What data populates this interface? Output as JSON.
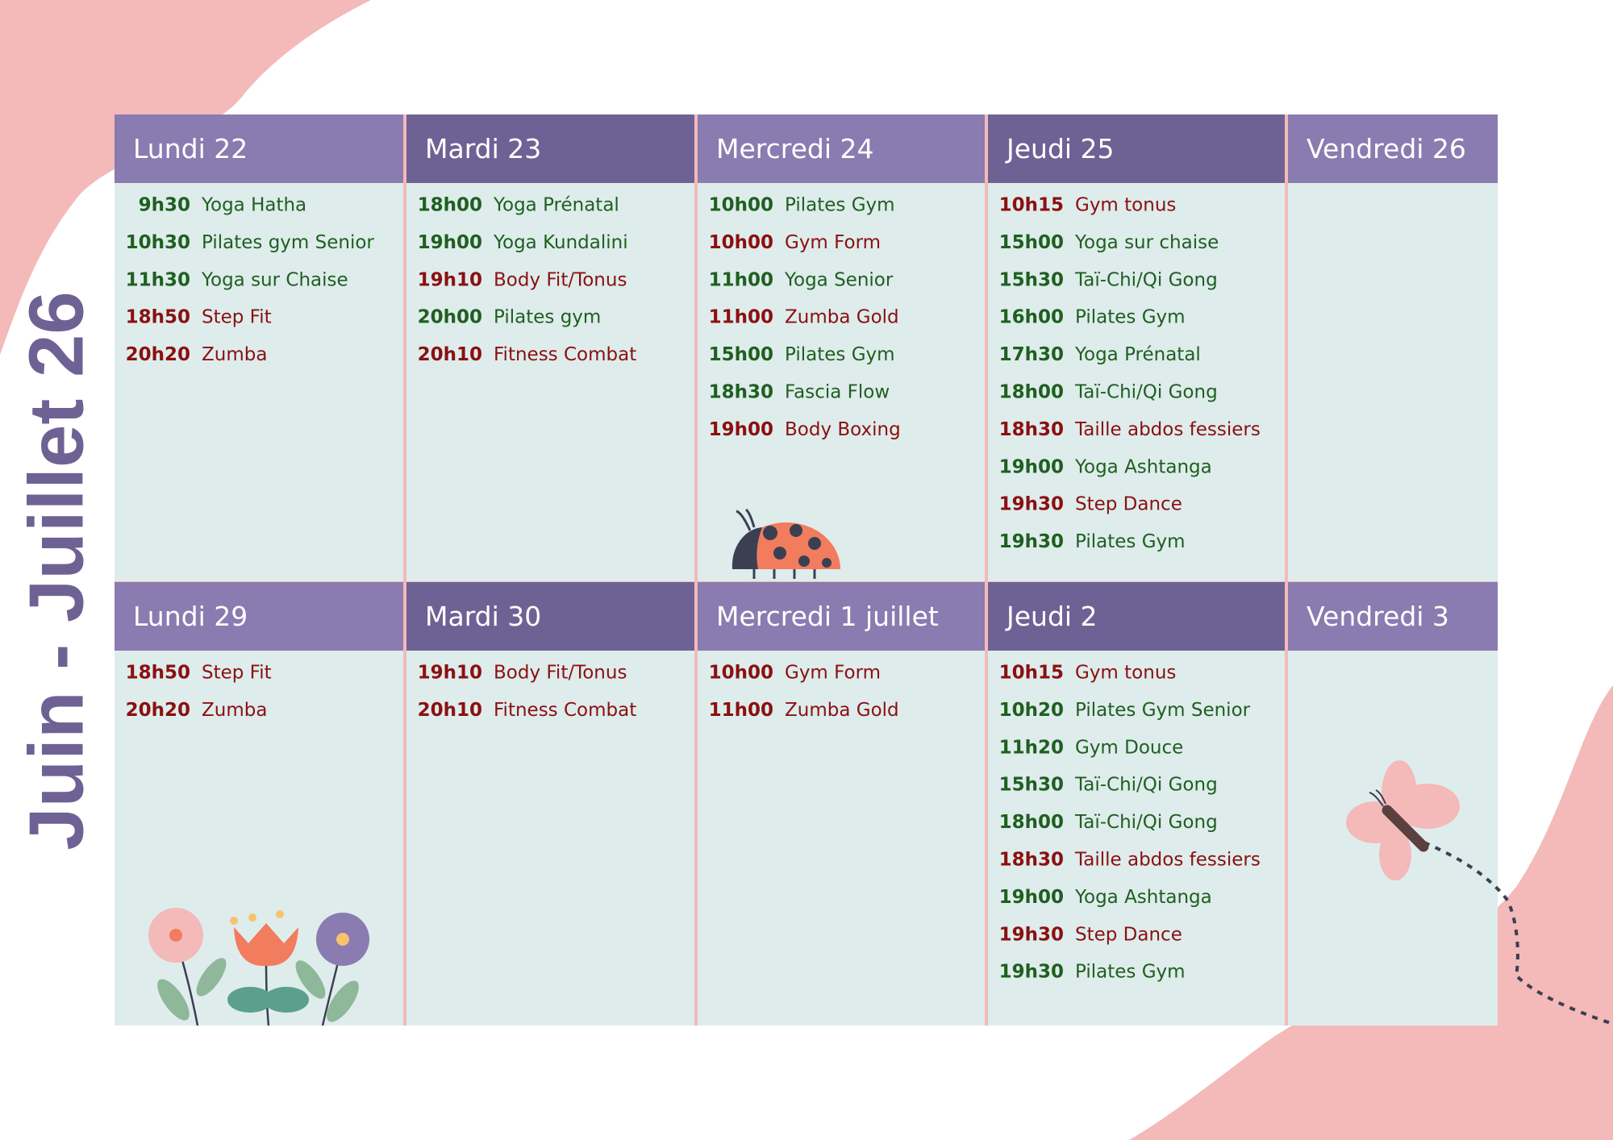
{
  "title": "Juin - Juillet 26",
  "weeks": [
    {
      "days": [
        {
          "header": "Lundi 22",
          "classes": [
            {
              "time": "9h30",
              "name": "Yoga Hatha",
              "color": "#1f5f1f"
            },
            {
              "time": "10h30",
              "name": "Pilates gym Senior",
              "color": "#1f5f1f"
            },
            {
              "time": "11h30",
              "name": "Yoga sur Chaise",
              "color": "#1f5f1f"
            },
            {
              "time": "18h50",
              "name": "Step Fit",
              "color": "#8b1010"
            },
            {
              "time": "20h20",
              "name": "Zumba",
              "color": "#8b1010"
            }
          ]
        },
        {
          "header": "Mardi 23",
          "classes": [
            {
              "time": "18h00",
              "name": "Yoga Prénatal",
              "color": "#1f5f1f"
            },
            {
              "time": "19h00",
              "name": "Yoga Kundalini",
              "color": "#1f5f1f"
            },
            {
              "time": "19h10",
              "name": "Body Fit/Tonus",
              "color": "#8b1010"
            },
            {
              "time": "20h00",
              "name": "Pilates gym",
              "color": "#1f5f1f"
            },
            {
              "time": "20h10",
              "name": "Fitness Combat",
              "color": "#8b1010"
            }
          ]
        },
        {
          "header": "Mercredi 24",
          "classes": [
            {
              "time": "10h00",
              "name": "Pilates Gym",
              "color": "#1f5f1f"
            },
            {
              "time": "10h00",
              "name": "Gym Form",
              "color": "#8b1010"
            },
            {
              "time": "11h00",
              "name": "Yoga Senior",
              "color": "#1f5f1f"
            },
            {
              "time": "11h00",
              "name": "Zumba Gold",
              "color": "#8b1010"
            },
            {
              "time": "15h00",
              "name": "Pilates Gym",
              "color": "#1f5f1f"
            },
            {
              "time": "18h30",
              "name": "Fascia Flow",
              "color": "#1f5f1f"
            },
            {
              "time": "19h00",
              "name": "Body Boxing",
              "color": "#8b1010"
            }
          ]
        },
        {
          "header": "Jeudi 25",
          "classes": [
            {
              "time": "10h15",
              "name": "Gym tonus",
              "color": "#8b1010"
            },
            {
              "time": "15h00",
              "name": "Yoga sur chaise",
              "color": "#1f5f1f"
            },
            {
              "time": "15h30",
              "name": "Taï-Chi/Qi Gong",
              "color": "#1f5f1f"
            },
            {
              "time": "16h00",
              "name": "Pilates Gym",
              "color": "#1f5f1f"
            },
            {
              "time": "17h30",
              "name": "Yoga Prénatal",
              "color": "#1f5f1f"
            },
            {
              "time": "18h00",
              "name": "Taï-Chi/Qi Gong",
              "color": "#1f5f1f"
            },
            {
              "time": "18h30",
              "name": "Taille abdos fessiers",
              "color": "#8b1010"
            },
            {
              "time": "19h00",
              "name": "Yoga Ashtanga",
              "color": "#1f5f1f"
            },
            {
              "time": "19h30",
              "name": "Step Dance",
              "color": "#8b1010"
            },
            {
              "time": "19h30",
              "name": "Pilates Gym",
              "color": "#1f5f1f"
            }
          ]
        },
        {
          "header": "Vendredi 26",
          "classes": []
        }
      ]
    },
    {
      "days": [
        {
          "header": "Lundi 29",
          "classes": [
            {
              "time": "18h50",
              "name": "Step Fit",
              "color": "#8b1010"
            },
            {
              "time": "20h20",
              "name": "Zumba",
              "color": "#8b1010"
            }
          ]
        },
        {
          "header": "Mardi 30",
          "classes": [
            {
              "time": "19h10",
              "name": "Body Fit/Tonus",
              "color": "#8b1010"
            },
            {
              "time": "20h10",
              "name": "Fitness Combat",
              "color": "#8b1010"
            }
          ]
        },
        {
          "header": "Mercredi 1 juillet",
          "classes": [
            {
              "time": "10h00",
              "name": "Gym Form",
              "color": "#8b1010"
            },
            {
              "time": "11h00",
              "name": "Zumba Gold",
              "color": "#8b1010"
            }
          ]
        },
        {
          "header": "Jeudi 2",
          "classes": [
            {
              "time": "10h15",
              "name": "Gym tonus",
              "color": "#8b1010"
            },
            {
              "time": "10h20",
              "name": "Pilates Gym Senior",
              "color": "#1f5f1f"
            },
            {
              "time": "11h20",
              "name": "Gym Douce",
              "color": "#1f5f1f"
            },
            {
              "time": "15h30",
              "name": "Taï-Chi/Qi Gong",
              "color": "#1f5f1f"
            },
            {
              "time": "18h00",
              "name": "Taï-Chi/Qi Gong",
              "color": "#1f5f1f"
            },
            {
              "time": "18h30",
              "name": "Taille abdos fessiers",
              "color": "#8b1010"
            },
            {
              "time": "19h00",
              "name": "Yoga Ashtanga",
              "color": "#1f5f1f"
            },
            {
              "time": "19h30",
              "name": "Step Dance",
              "color": "#8b1010"
            },
            {
              "time": "19h30",
              "name": "Pilates Gym",
              "color": "#1f5f1f"
            }
          ]
        },
        {
          "header": "Vendredi 3",
          "classes": []
        }
      ]
    }
  ]
}
